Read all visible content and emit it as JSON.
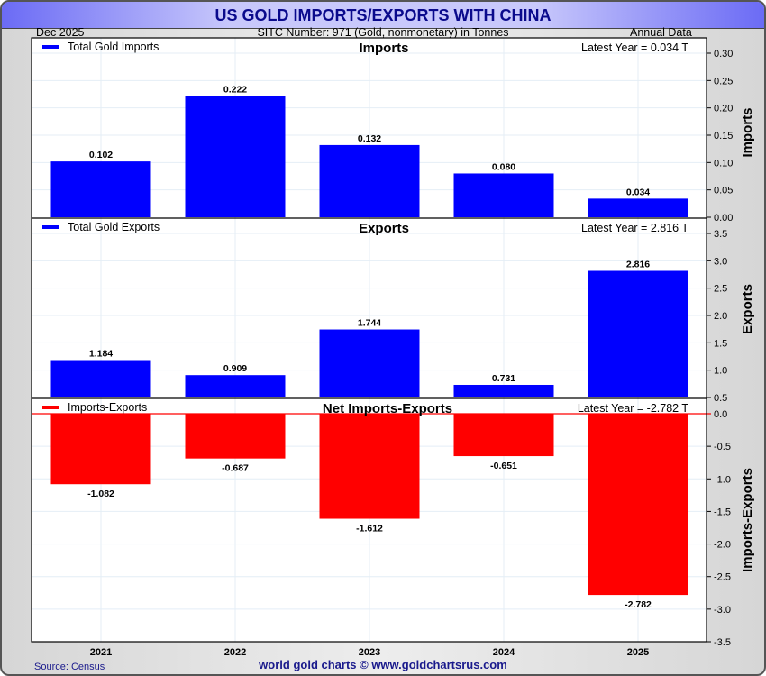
{
  "header": {
    "title": "US GOLD IMPORTS/EXPORTS WITH CHINA",
    "date": "Dec  2025",
    "subtitle": "SITC Number: 971 (Gold, nonmonetary) in Tonnes",
    "frequency": "Annual Data"
  },
  "footer": {
    "source": "Source: Census",
    "credit": "world gold charts © www.goldchartsrus.com"
  },
  "colors": {
    "positive_bar": "#0000ff",
    "negative_bar": "#ff0000",
    "title_text": "#0a0a8c",
    "grid": "#e4eef6"
  },
  "chart_data": [
    {
      "type": "bar",
      "title": "Imports",
      "ylabel": "Imports",
      "legend": "Total Gold Imports",
      "legend_position": "top-left",
      "latest_note": "Latest Year = 0.034 T",
      "categories": [
        "2021",
        "2022",
        "2023",
        "2024",
        "2025"
      ],
      "values": [
        0.102,
        0.222,
        0.132,
        0.08,
        0.034
      ],
      "value_labels": [
        "0.102",
        "0.222",
        "0.132",
        "0.080",
        "0.034"
      ],
      "ylim": [
        0.0,
        0.3
      ],
      "yticks": [
        0.0,
        0.05,
        0.1,
        0.15,
        0.2,
        0.25,
        0.3
      ],
      "ytick_labels": [
        "0.00",
        "0.05",
        "0.10",
        "0.15",
        "0.20",
        "0.25",
        "0.30"
      ],
      "grid": true
    },
    {
      "type": "bar",
      "title": "Exports",
      "ylabel": "Exports",
      "legend": "Total Gold Exports",
      "legend_position": "top-left",
      "latest_note": "Latest Year = 2.816 T",
      "categories": [
        "2021",
        "2022",
        "2023",
        "2024",
        "2025"
      ],
      "values": [
        1.184,
        0.909,
        1.744,
        0.731,
        2.816
      ],
      "value_labels": [
        "1.184",
        "0.909",
        "1.744",
        "0.731",
        "2.816"
      ],
      "ylim": [
        0.5,
        3.5
      ],
      "yticks": [
        0.5,
        1.0,
        1.5,
        2.0,
        2.5,
        3.0,
        3.5
      ],
      "ytick_labels": [
        "0.5",
        "1.0",
        "1.5",
        "2.0",
        "2.5",
        "3.0",
        "3.5"
      ],
      "grid": true
    },
    {
      "type": "bar",
      "title": "Net Imports-Exports",
      "ylabel": "Imports-Exports",
      "legend": "Imports-Exports",
      "legend_position": "top-left",
      "latest_note": "Latest Year = -2.782 T",
      "categories": [
        "2021",
        "2022",
        "2023",
        "2024",
        "2025"
      ],
      "values": [
        -1.082,
        -0.687,
        -1.612,
        -0.651,
        -2.782
      ],
      "value_labels": [
        "-1.082",
        "-0.687",
        "-1.612",
        "-0.651",
        "-2.782"
      ],
      "ylim": [
        -3.5,
        0.0
      ],
      "yticks": [
        0.0,
        -0.5,
        -1.0,
        -1.5,
        -2.0,
        -2.5,
        -3.0,
        -3.5
      ],
      "ytick_labels": [
        "0.0",
        "-0.5",
        "-1.0",
        "-1.5",
        "-2.0",
        "-2.5",
        "-3.0",
        "-3.5"
      ],
      "grid": true
    }
  ]
}
